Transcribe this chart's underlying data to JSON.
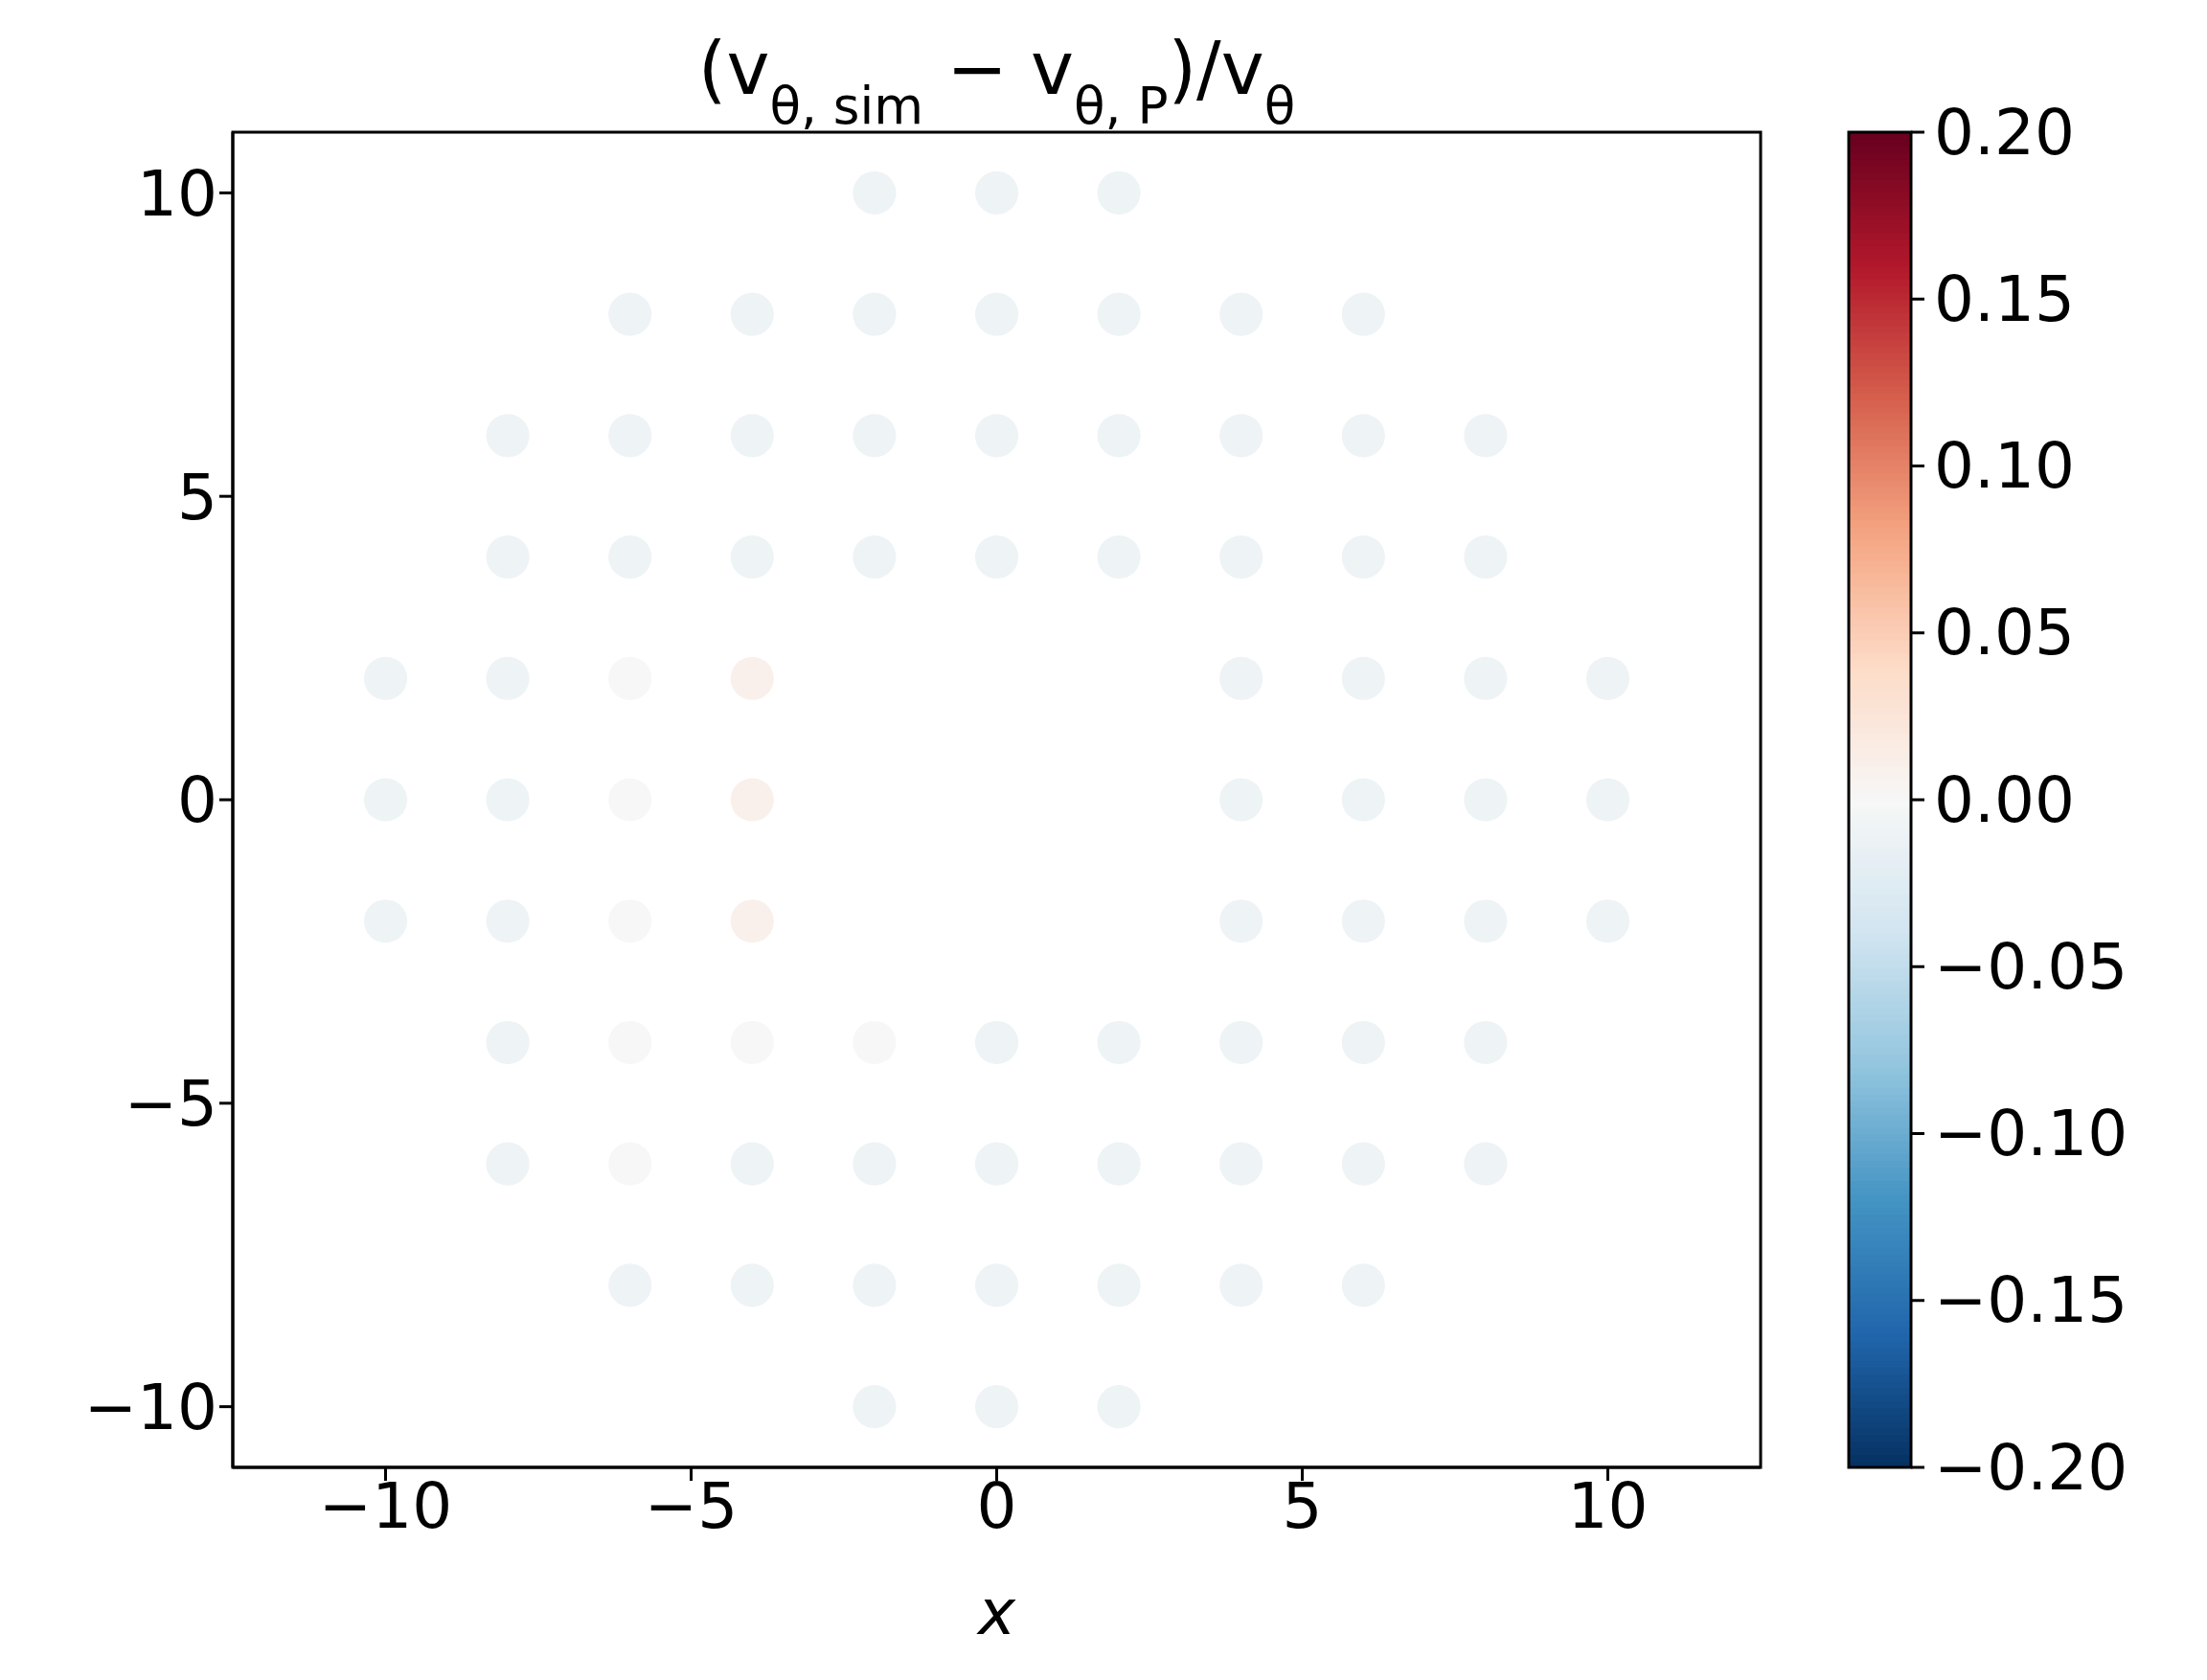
{
  "chart_data": {
    "type": "scatter",
    "title": "(v$_{θ, sim}$ − v$_{θ, P}$)/v$_{θ}$",
    "xlabel": "x",
    "x": [
      -2,
      0,
      2,
      -6,
      -4,
      -2,
      0,
      2,
      4,
      6,
      -8,
      -6,
      -4,
      -2,
      0,
      2,
      4,
      6,
      8,
      -8,
      -6,
      -4,
      -2,
      0,
      2,
      4,
      6,
      8,
      -10,
      -8,
      -6,
      -4,
      4,
      6,
      8,
      10,
      -10,
      -8,
      -6,
      -4,
      4,
      6,
      8,
      10,
      -10,
      -8,
      -6,
      -4,
      4,
      6,
      8,
      10,
      -8,
      -6,
      -4,
      -2,
      0,
      2,
      4,
      6,
      8,
      -8,
      -6,
      -4,
      -2,
      0,
      2,
      4,
      6,
      8,
      -6,
      -4,
      -2,
      0,
      2,
      4,
      6,
      -2,
      0,
      2
    ],
    "values": [
      10,
      10,
      10,
      8,
      8,
      8,
      8,
      8,
      8,
      8,
      6,
      6,
      6,
      6,
      6,
      6,
      6,
      6,
      6,
      4,
      4,
      4,
      4,
      4,
      4,
      4,
      4,
      4,
      2,
      2,
      2,
      2,
      2,
      2,
      2,
      2,
      0,
      0,
      0,
      0,
      0,
      0,
      0,
      0,
      -2,
      -2,
      -2,
      -2,
      -2,
      -2,
      -2,
      -2,
      -4,
      -4,
      -4,
      -4,
      -4,
      -4,
      -4,
      -4,
      -4,
      -6,
      -6,
      -6,
      -6,
      -6,
      -6,
      -6,
      -6,
      -6,
      -8,
      -8,
      -8,
      -8,
      -8,
      -8,
      -8,
      -10,
      -10,
      -10
    ],
    "cvalues": [
      -0.01,
      -0.01,
      -0.01,
      -0.01,
      -0.01,
      -0.01,
      -0.01,
      -0.01,
      -0.01,
      -0.01,
      -0.01,
      -0.01,
      -0.01,
      -0.01,
      -0.01,
      -0.01,
      -0.01,
      -0.01,
      -0.01,
      -0.01,
      -0.01,
      -0.01,
      -0.01,
      -0.01,
      -0.01,
      -0.01,
      -0.01,
      -0.01,
      -0.01,
      -0.01,
      0,
      0.01,
      -0.01,
      -0.01,
      -0.01,
      -0.01,
      -0.01,
      -0.01,
      0,
      0.01,
      -0.01,
      -0.01,
      -0.01,
      -0.01,
      -0.01,
      -0.01,
      0,
      0.01,
      -0.01,
      -0.01,
      -0.01,
      -0.01,
      -0.01,
      0,
      0,
      0,
      -0.01,
      -0.01,
      -0.01,
      -0.01,
      -0.01,
      -0.01,
      0,
      -0.01,
      -0.01,
      -0.01,
      -0.01,
      -0.01,
      -0.01,
      -0.01,
      -0.01,
      -0.01,
      -0.01,
      -0.01,
      -0.01,
      -0.01,
      -0.01,
      -0.01,
      -0.01,
      -0.01
    ],
    "xlim": [
      -12.5,
      12.5
    ],
    "xticks": [
      -10,
      -5,
      0,
      5,
      10
    ],
    "ylim": [
      -11,
      11
    ],
    "yticks": [
      -10,
      -5,
      0,
      5,
      10
    ],
    "clim": [
      -0.2,
      0.2
    ],
    "cticks": [
      {
        "value": 0.2,
        "label": "0.20"
      },
      {
        "value": 0.15,
        "label": "0.15"
      },
      {
        "value": 0.1,
        "label": "0.10"
      },
      {
        "value": 0.05,
        "label": "0.05"
      },
      {
        "value": 0,
        "label": "0.00"
      },
      {
        "value": -0.05,
        "label": "−0.05"
      },
      {
        "value": -0.1,
        "label": "−0.10"
      },
      {
        "value": -0.15,
        "label": "−0.15"
      },
      {
        "value": -0.2,
        "label": "−0.20"
      }
    ]
  }
}
